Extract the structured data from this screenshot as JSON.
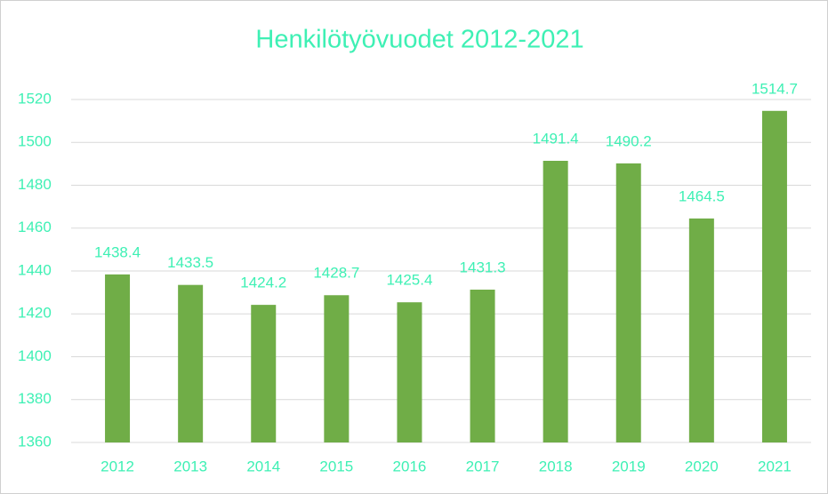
{
  "chart_data": {
    "type": "bar",
    "title": "Henkilötyövuodet 2012-2021",
    "categories": [
      "2012",
      "2013",
      "2014",
      "2015",
      "2016",
      "2017",
      "2018",
      "2019",
      "2020",
      "2021"
    ],
    "values": [
      1438.4,
      1433.5,
      1424.2,
      1428.7,
      1425.4,
      1431.3,
      1491.4,
      1490.2,
      1464.5,
      1514.7
    ],
    "color": "#70ad47",
    "ylim": [
      1360,
      1520
    ],
    "yticks": [
      1360,
      1380,
      1400,
      1420,
      1440,
      1460,
      1480,
      1500,
      1520
    ],
    "grid": true
  }
}
